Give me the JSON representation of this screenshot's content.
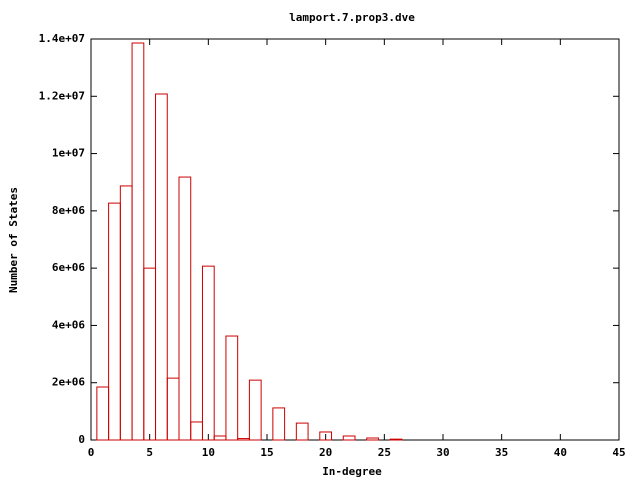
{
  "chart_data": {
    "type": "bar",
    "title": "lamport.7.prop3.dve",
    "xlabel": "In-degree",
    "ylabel": "Number of States",
    "x": [
      1,
      2,
      3,
      4,
      5,
      6,
      7,
      8,
      9,
      10,
      11,
      12,
      13,
      14,
      16,
      18,
      20,
      22,
      24,
      26
    ],
    "values": [
      1850000,
      8270000,
      8870000,
      13860000,
      6000000,
      12080000,
      2160000,
      9180000,
      630000,
      6070000,
      140000,
      3630000,
      50000,
      2090000,
      1120000,
      590000,
      280000,
      140000,
      70000,
      30000
    ],
    "color": "#cc0000",
    "xlim": [
      0,
      45
    ],
    "xticks": [
      0,
      5,
      10,
      15,
      20,
      25,
      30,
      35,
      40,
      45
    ],
    "ylim": [
      0,
      14000000
    ],
    "yticks": [
      0,
      {
        "value": 2000000,
        "label": "2e+06"
      },
      {
        "value": 4000000,
        "label": "4e+06"
      },
      {
        "value": 6000000,
        "label": "6e+06"
      },
      {
        "value": 8000000,
        "label": "8e+06"
      },
      {
        "value": 10000000,
        "label": "1e+07"
      },
      {
        "value": 12000000,
        "label": "1.2e+07"
      },
      {
        "value": 14000000,
        "label": "1.4e+07"
      }
    ],
    "grid": false
  }
}
